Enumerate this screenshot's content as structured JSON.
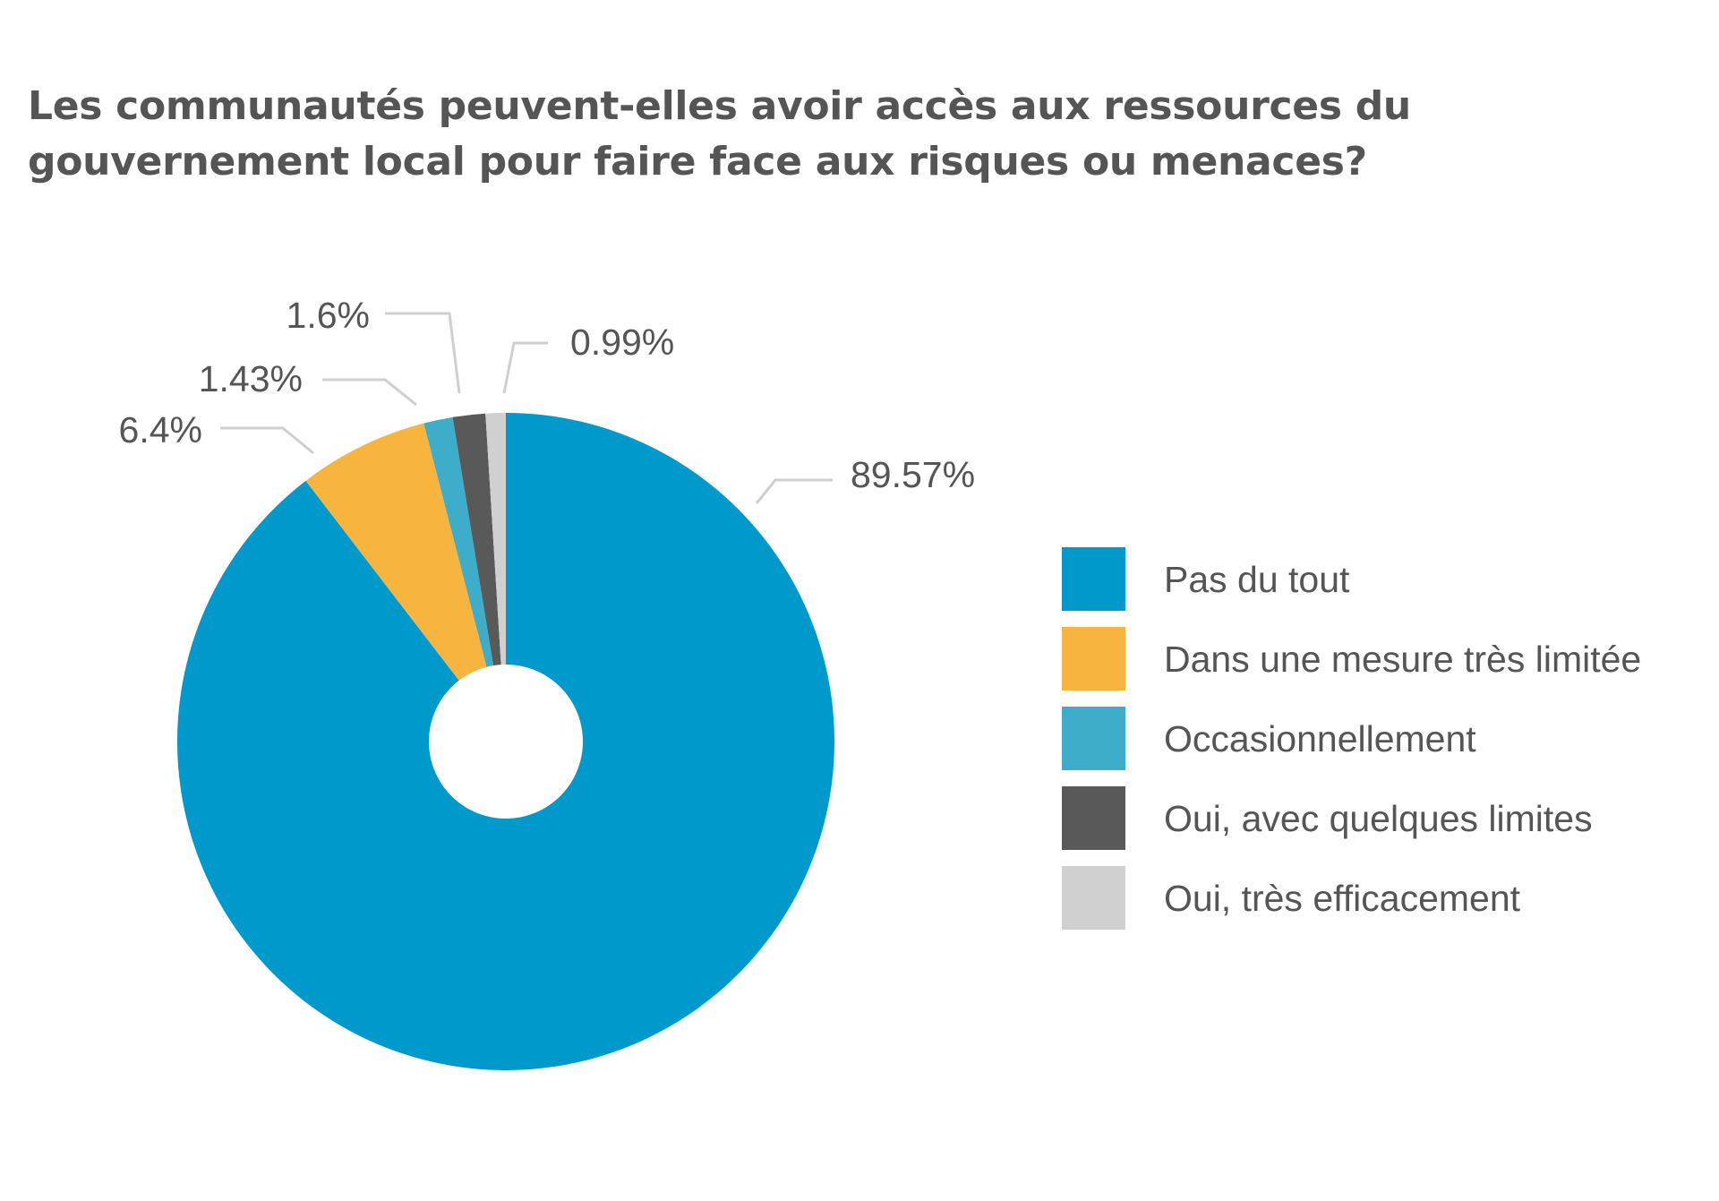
{
  "chart_data": {
    "type": "pie",
    "variant": "donut",
    "title": "Les communautés peuvent-elles avoir accès aux ressources du gouvernement local pour faire face aux risques ou menaces?",
    "title_lines": [
      "Les communautés peuvent-elles avoir accès aux ressources du",
      "gouvernement local pour faire face aux risques ou menaces?"
    ],
    "unit": "%",
    "start_angle_deg": 0,
    "direction": "clockwise",
    "legend_position": "right",
    "slices": [
      {
        "name": "Pas du tout",
        "value": 89.57,
        "label": "89.57%",
        "color": "#0099cc"
      },
      {
        "name": "Dans une mesure très limitée",
        "value": 6.4,
        "label": "6.4%",
        "color": "#f7b53f"
      },
      {
        "name": "Occasionnellement",
        "value": 1.43,
        "label": "1.43%",
        "color": "#3eadc9"
      },
      {
        "name": "Oui, avec quelques limites",
        "value": 1.6,
        "label": "1.6%",
        "color": "#595959"
      },
      {
        "name": "Oui, très efficacement",
        "value": 0.99,
        "label": "0.99%",
        "color": "#d0d0d0"
      }
    ]
  }
}
